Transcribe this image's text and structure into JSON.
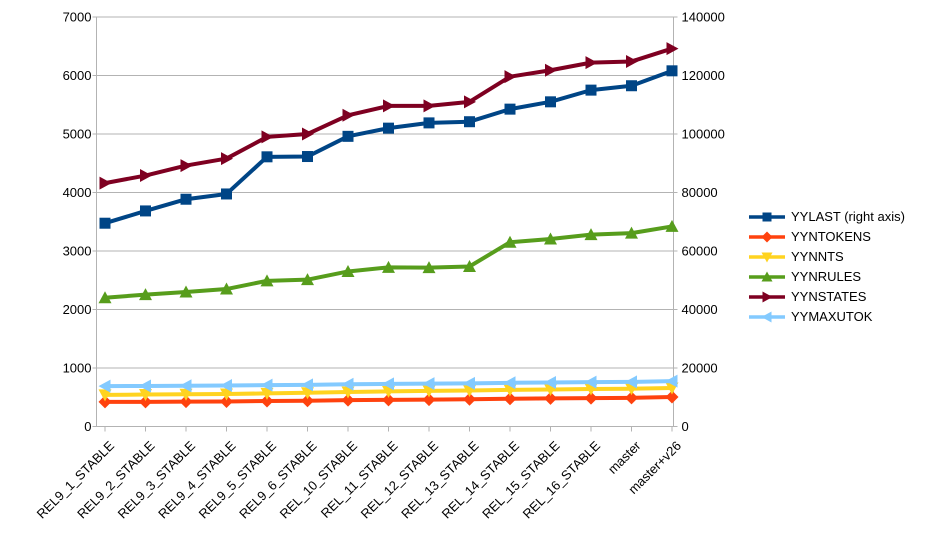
{
  "chart_data": {
    "type": "line",
    "title": "",
    "categories": [
      "REL9_1_STABLE",
      "REL9_2_STABLE",
      "REL9_3_STABLE",
      "REL9_4_STABLE",
      "REL9_5_STABLE",
      "REL9_6_STABLE",
      "REL_10_STABLE",
      "REL_11_STABLE",
      "REL_12_STABLE",
      "REL_13_STABLE",
      "REL_14_STABLE",
      "REL_15_STABLE",
      "REL_16_STABLE",
      "master",
      "master+v26"
    ],
    "axes": {
      "left": {
        "min": 0,
        "max": 7000,
        "step": 1000
      },
      "right": {
        "min": 0,
        "max": 140000,
        "step": 20000
      }
    },
    "grid": true,
    "legend_position": "right",
    "series": [
      {
        "name": "YYLAST (right axis)",
        "axis": "right",
        "color": "#004586",
        "marker": "square",
        "values": [
          69500,
          73700,
          77700,
          79500,
          92200,
          92300,
          99200,
          102000,
          103800,
          104200,
          108500,
          111000,
          115000,
          116500,
          121600
        ]
      },
      {
        "name": "YYNTOKENS",
        "axis": "left",
        "color": "#ff420e",
        "marker": "diamond",
        "values": [
          420,
          422,
          425,
          428,
          435,
          440,
          450,
          455,
          460,
          465,
          475,
          480,
          485,
          490,
          505
        ]
      },
      {
        "name": "YYNNTS",
        "axis": "left",
        "color": "#ffd320",
        "marker": "triangle-down",
        "values": [
          540,
          546,
          551,
          556,
          566,
          576,
          590,
          600,
          610,
          616,
          626,
          632,
          640,
          646,
          658
        ]
      },
      {
        "name": "YYNRULES",
        "axis": "left",
        "color": "#579d1c",
        "marker": "triangle-up",
        "values": [
          2200,
          2255,
          2300,
          2350,
          2490,
          2510,
          2650,
          2720,
          2715,
          2735,
          3150,
          3205,
          3280,
          3305,
          3420
        ]
      },
      {
        "name": "YYNSTATES",
        "axis": "left",
        "color": "#7e0021",
        "marker": "triangle-right",
        "values": [
          4160,
          4290,
          4460,
          4580,
          4950,
          5000,
          5320,
          5480,
          5480,
          5550,
          5980,
          6090,
          6220,
          6240,
          6460
        ]
      },
      {
        "name": "YYMAXUTOK",
        "axis": "left",
        "color": "#83caff",
        "marker": "triangle-left",
        "values": [
          690,
          693,
          696,
          700,
          707,
          712,
          722,
          728,
          733,
          738,
          747,
          752,
          758,
          762,
          776
        ]
      }
    ],
    "colors": {
      "grid": "#b3b3b3",
      "axis": "#b3b3b3",
      "text": "#000000",
      "background": "#ffffff"
    }
  }
}
